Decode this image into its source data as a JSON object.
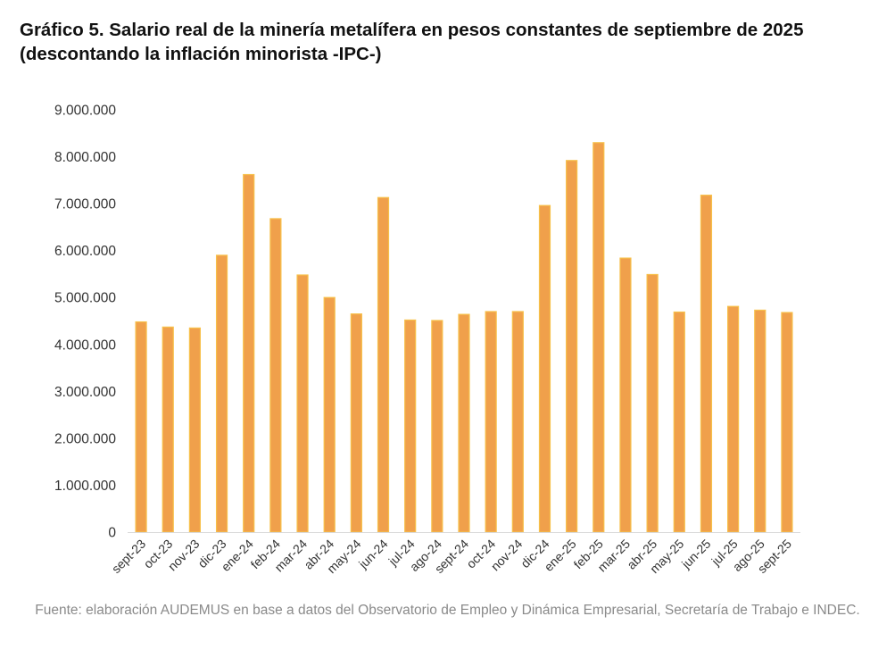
{
  "chart_data": {
    "type": "bar",
    "title": "Gráfico 5. Salario real de la minería metalífera en pesos constantes de septiembre de 2025 (descontando la inflación minorista -IPC-)",
    "xlabel": "",
    "ylabel": "",
    "categories": [
      "sept-23",
      "oct-23",
      "nov-23",
      "dic-23",
      "ene-24",
      "feb-24",
      "mar-24",
      "abr-24",
      "may-24",
      "jun-24",
      "jul-24",
      "ago-24",
      "sept-24",
      "oct-24",
      "nov-24",
      "dic-24",
      "ene-25",
      "feb-25",
      "mar-25",
      "abr-25",
      "may-25",
      "jun-25",
      "jul-25",
      "ago-25",
      "sept-25"
    ],
    "values": [
      4480000,
      4370000,
      4350000,
      5900000,
      7620000,
      6680000,
      5480000,
      5000000,
      4650000,
      7130000,
      4520000,
      4510000,
      4640000,
      4700000,
      4700000,
      6960000,
      7920000,
      8300000,
      5840000,
      5490000,
      4690000,
      7180000,
      4810000,
      4730000,
      4680000
    ],
    "ylim": [
      0,
      9000000
    ],
    "yticks": [
      0,
      1000000,
      2000000,
      3000000,
      4000000,
      5000000,
      6000000,
      7000000,
      8000000,
      9000000
    ],
    "ytick_labels": [
      "0",
      "1.000.000",
      "2.000.000",
      "3.000.000",
      "4.000.000",
      "5.000.000",
      "6.000.000",
      "7.000.000",
      "8.000.000",
      "9.000.000"
    ],
    "bar_color": "#F0A04B",
    "bar_edge_color": "#F7C04A",
    "grid": false,
    "legend": "none"
  },
  "source": "Fuente: elaboración AUDEMUS en base a datos del Observatorio de Empleo y Dinámica Empresarial, Secretaría de Trabajo e INDEC."
}
